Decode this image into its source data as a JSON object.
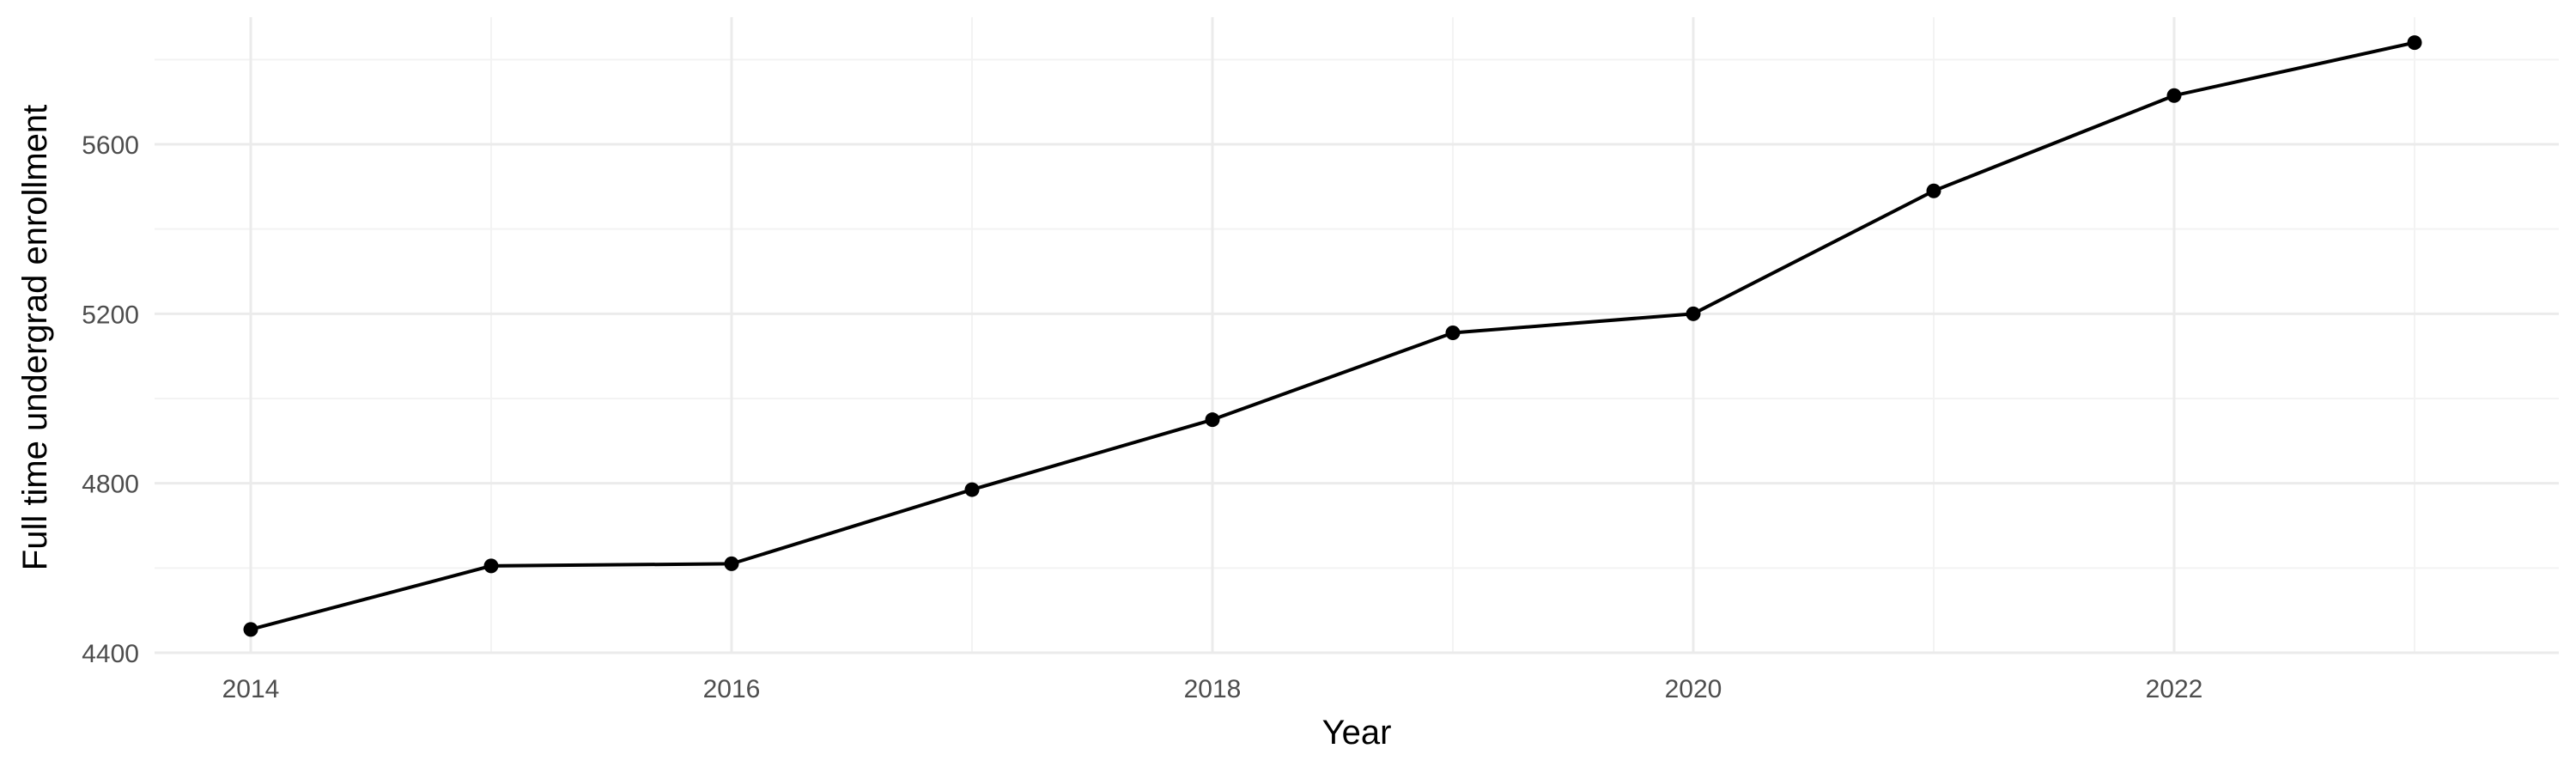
{
  "chart_data": {
    "type": "line",
    "title": "",
    "xlabel": "Year",
    "ylabel": "Full time undergrad enrollment",
    "x": [
      2014,
      2015,
      2016,
      2017,
      2018,
      2019,
      2020,
      2021,
      2022,
      2023
    ],
    "series": [
      {
        "values": [
          4455,
          4605,
          4610,
          4785,
          4950,
          5155,
          5200,
          5490,
          5715,
          5840
        ]
      }
    ],
    "xlim": [
      2013.6,
      2023.6
    ],
    "ylim": [
      4400,
      5900
    ],
    "x_ticks": [
      2014,
      2016,
      2018,
      2020,
      2022
    ],
    "y_ticks": [
      4400,
      4800,
      5200,
      5600
    ],
    "x_tick_labels": [
      "2014",
      "2016",
      "2018",
      "2020",
      "2022"
    ],
    "y_tick_labels": [
      "4400",
      "4800",
      "5200",
      "5600"
    ],
    "grid": true,
    "legend": "none",
    "colors": {
      "line": "#000000",
      "point": "#000000",
      "grid_major": "#ebebeb",
      "grid_minor": "#f3f3f3",
      "tick_text": "#4d4d4d"
    }
  }
}
